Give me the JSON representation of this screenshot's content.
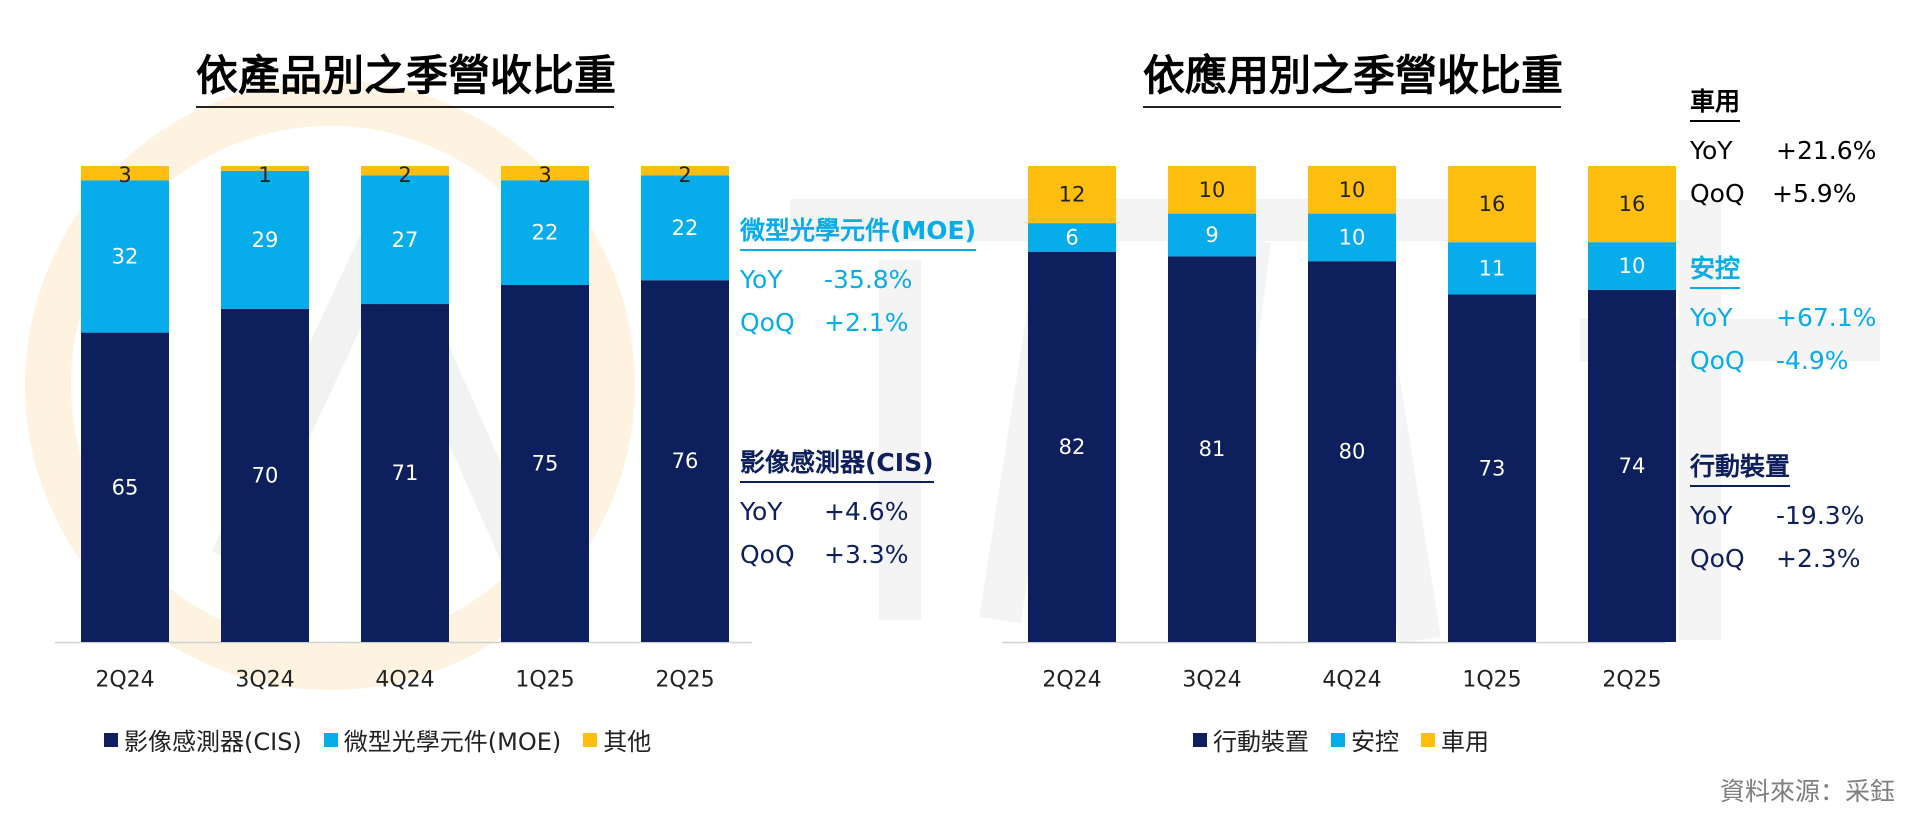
{
  "colors": {
    "navy": "#0d1f5c",
    "cyan": "#07adea",
    "yellow": "#fdbe10",
    "axis": "#d0d0d0",
    "source": "#7f7f7f"
  },
  "chart_data": [
    {
      "type": "bar",
      "stacked": true,
      "title": "依產品別之季營收比重",
      "categories": [
        "2Q24",
        "3Q24",
        "4Q24",
        "1Q25",
        "2Q25"
      ],
      "series": [
        {
          "name": "影像感測器(CIS)",
          "color": "#0d1f5c",
          "values": [
            65,
            70,
            71,
            75,
            76
          ]
        },
        {
          "name": "微型光學元件(MOE)",
          "color": "#07adea",
          "values": [
            32,
            29,
            27,
            22,
            22
          ]
        },
        {
          "name": "其他",
          "color": "#fdbe10",
          "values": [
            3,
            1,
            2,
            3,
            2
          ]
        }
      ],
      "ylim": [
        0,
        100
      ],
      "legend": "bottom",
      "grid": false
    },
    {
      "type": "bar",
      "stacked": true,
      "title": "依應用別之季營收比重",
      "categories": [
        "2Q24",
        "3Q24",
        "4Q24",
        "1Q25",
        "2Q25"
      ],
      "series": [
        {
          "name": "行動裝置",
          "color": "#0d1f5c",
          "values": [
            82,
            81,
            80,
            73,
            74
          ]
        },
        {
          "name": "安控",
          "color": "#07adea",
          "values": [
            6,
            9,
            10,
            11,
            10
          ]
        },
        {
          "name": "車用",
          "color": "#fdbe10",
          "values": [
            12,
            10,
            10,
            16,
            16
          ]
        }
      ],
      "ylim": [
        0,
        100
      ],
      "legend": "bottom",
      "grid": false
    }
  ],
  "annotations": {
    "left": [
      {
        "title": "微型光學元件(MOE)",
        "yoy_label": "YoY",
        "yoy": "-35.8%",
        "qoq_label": "QoQ",
        "qoq": "+2.1%"
      },
      {
        "title": "影像感測器(CIS)",
        "yoy_label": "YoY",
        "yoy": "+4.6%",
        "qoq_label": "QoQ",
        "qoq": "+3.3%"
      }
    ],
    "right": [
      {
        "title": "車用",
        "yoy_label": "YoY",
        "yoy": "+21.6%",
        "qoq_label": "QoQ",
        "qoq": "+5.9%"
      },
      {
        "title": "安控",
        "yoy_label": "YoY",
        "yoy": "+67.1%",
        "qoq_label": "QoQ",
        "qoq": "-4.9%"
      },
      {
        "title": "行動裝置",
        "yoy_label": "YoY",
        "yoy": "-19.3%",
        "qoq_label": "QoQ",
        "qoq": "+2.3%"
      }
    ]
  },
  "legend": {
    "left": [
      "影像感測器(CIS)",
      "微型光學元件(MOE)",
      "其他"
    ],
    "right": [
      "行動裝置",
      "安控",
      "車用"
    ]
  },
  "source": "資料來源：采鈺"
}
